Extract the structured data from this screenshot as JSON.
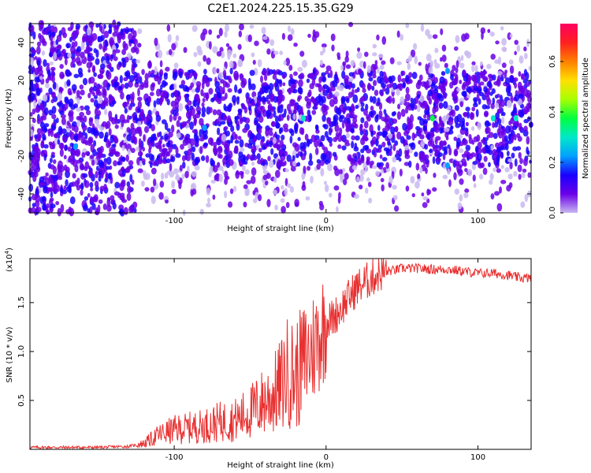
{
  "figure_title": "C2E1.2024.225.15.35.G29",
  "chart_data": [
    {
      "type": "heatmap",
      "title": "C2E1.2024.225.15.35.G29",
      "xlabel": "Height of straight line (km)",
      "ylabel": "Frequency (Hz)",
      "xlim": [
        -195,
        135
      ],
      "ylim": [
        -50,
        50
      ],
      "xticks": [
        -100,
        0,
        100
      ],
      "yticks": [
        -40,
        -20,
        0,
        20,
        40
      ],
      "colorbar": {
        "label": "Normalized spectral amplitude",
        "range": [
          0.0,
          0.75
        ],
        "ticks": [
          0.0,
          0.2,
          0.4,
          0.6
        ],
        "colormap": [
          "#c9b8f0",
          "#6a00e8",
          "#1a00ff",
          "#00a0ff",
          "#00e8c8",
          "#00ff40",
          "#a8ff00",
          "#ffe000",
          "#ff8000",
          "#ff2020",
          "#ff0060"
        ]
      },
      "description_values": {
        "dense_band_freq_hz": [
          -25,
          25
        ],
        "hotspots": [
          {
            "x": 80,
            "y": 25,
            "v": 0.25
          },
          {
            "x": 80,
            "y": -25,
            "v": 0.25
          },
          {
            "x": 70,
            "y": 0,
            "v": 0.35
          },
          {
            "x": 110,
            "y": 0,
            "v": 0.3
          },
          {
            "x": 125,
            "y": 0,
            "v": 0.3
          },
          {
            "x": -80,
            "y": -5,
            "v": 0.25
          },
          {
            "x": -15,
            "y": 0,
            "v": 0.3
          },
          {
            "x": -165,
            "y": -15,
            "v": 0.2
          }
        ]
      }
    },
    {
      "type": "line",
      "xlabel": "Height of straight line (km)",
      "ylabel": "SNR (10 * v/v)",
      "y_multiplier": "(x10",
      "y_multiplier_exp": "4",
      "y_multiplier_close": ")",
      "xlim": [
        -195,
        135
      ],
      "ylim": [
        0,
        1.95
      ],
      "xticks": [
        -100,
        0,
        100
      ],
      "yticks": [
        0.5,
        1.0,
        1.5
      ],
      "ytick_labels": [
        "0.5",
        "1.0",
        "1.5"
      ],
      "color": "#e83030",
      "series": [
        {
          "x": [
            -195,
            -150,
            -130,
            -120,
            -110,
            -100,
            -90,
            -80,
            -70,
            -60,
            -50,
            -40,
            -35,
            -30,
            -25,
            -20,
            -15,
            -10,
            -5,
            0,
            5,
            10,
            15,
            20,
            25,
            30,
            35,
            40,
            45,
            50,
            60,
            70,
            80,
            90,
            100,
            110,
            120,
            125,
            130,
            135
          ],
          "y": [
            0.02,
            0.02,
            0.03,
            0.06,
            0.15,
            0.2,
            0.22,
            0.24,
            0.28,
            0.3,
            0.38,
            0.5,
            0.55,
            0.65,
            0.8,
            0.75,
            0.9,
            1.0,
            1.15,
            1.3,
            1.35,
            1.45,
            1.55,
            1.65,
            1.7,
            1.75,
            1.8,
            1.82,
            1.83,
            1.85,
            1.85,
            1.84,
            1.84,
            1.82,
            1.8,
            1.8,
            1.78,
            1.76,
            1.75,
            1.75
          ]
        }
      ]
    }
  ]
}
